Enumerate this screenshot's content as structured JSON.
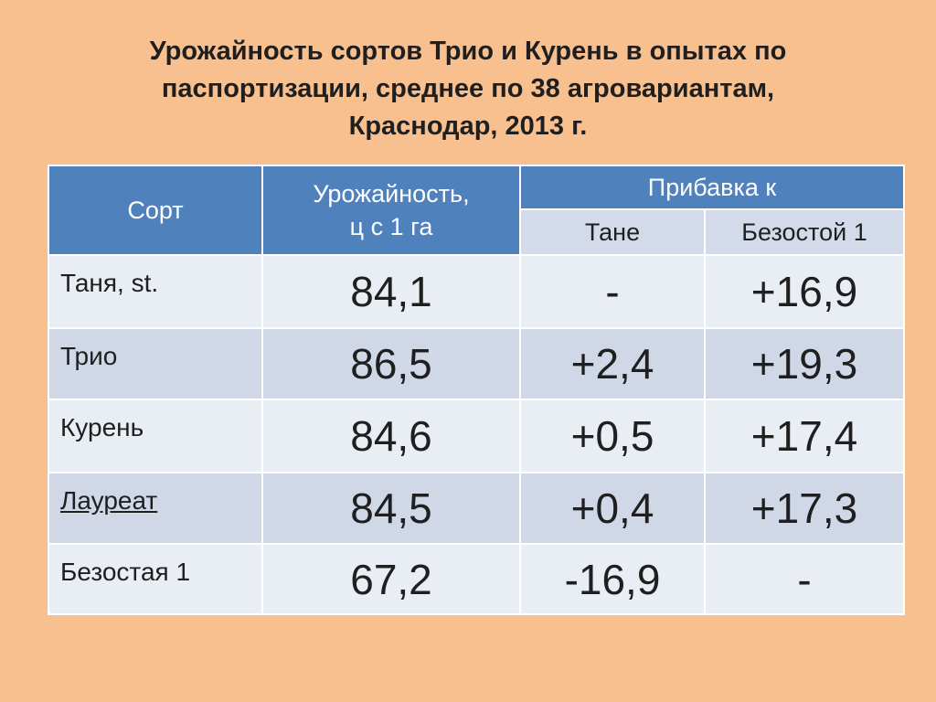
{
  "header": {
    "title_lines": [
      "Урожайность сортов Трио и Курень в опытах по",
      "паспортизации, среднее по 38 агровариантам,",
      "Краснодар, 2013 г."
    ]
  },
  "table": {
    "columns": {
      "variety": "Сорт",
      "yield_lines": [
        "Урожайность,",
        "ц с 1 га"
      ],
      "increase": "Прибавка к",
      "increase_tanya": "Тане",
      "increase_bezostaya": "Безостой 1"
    },
    "rows": [
      [
        "Таня, st.",
        "84,1",
        "-",
        "+16,9"
      ],
      [
        "Трио",
        "86,5",
        "+2,4",
        "+19,3"
      ],
      [
        "Курень",
        "84,6",
        "+0,5",
        "+17,4"
      ],
      [
        "Лауреат",
        "84,5",
        "+0,4",
        "+17,3"
      ],
      [
        "Безостая 1",
        "67,2",
        "-16,9",
        "-"
      ]
    ]
  }
}
